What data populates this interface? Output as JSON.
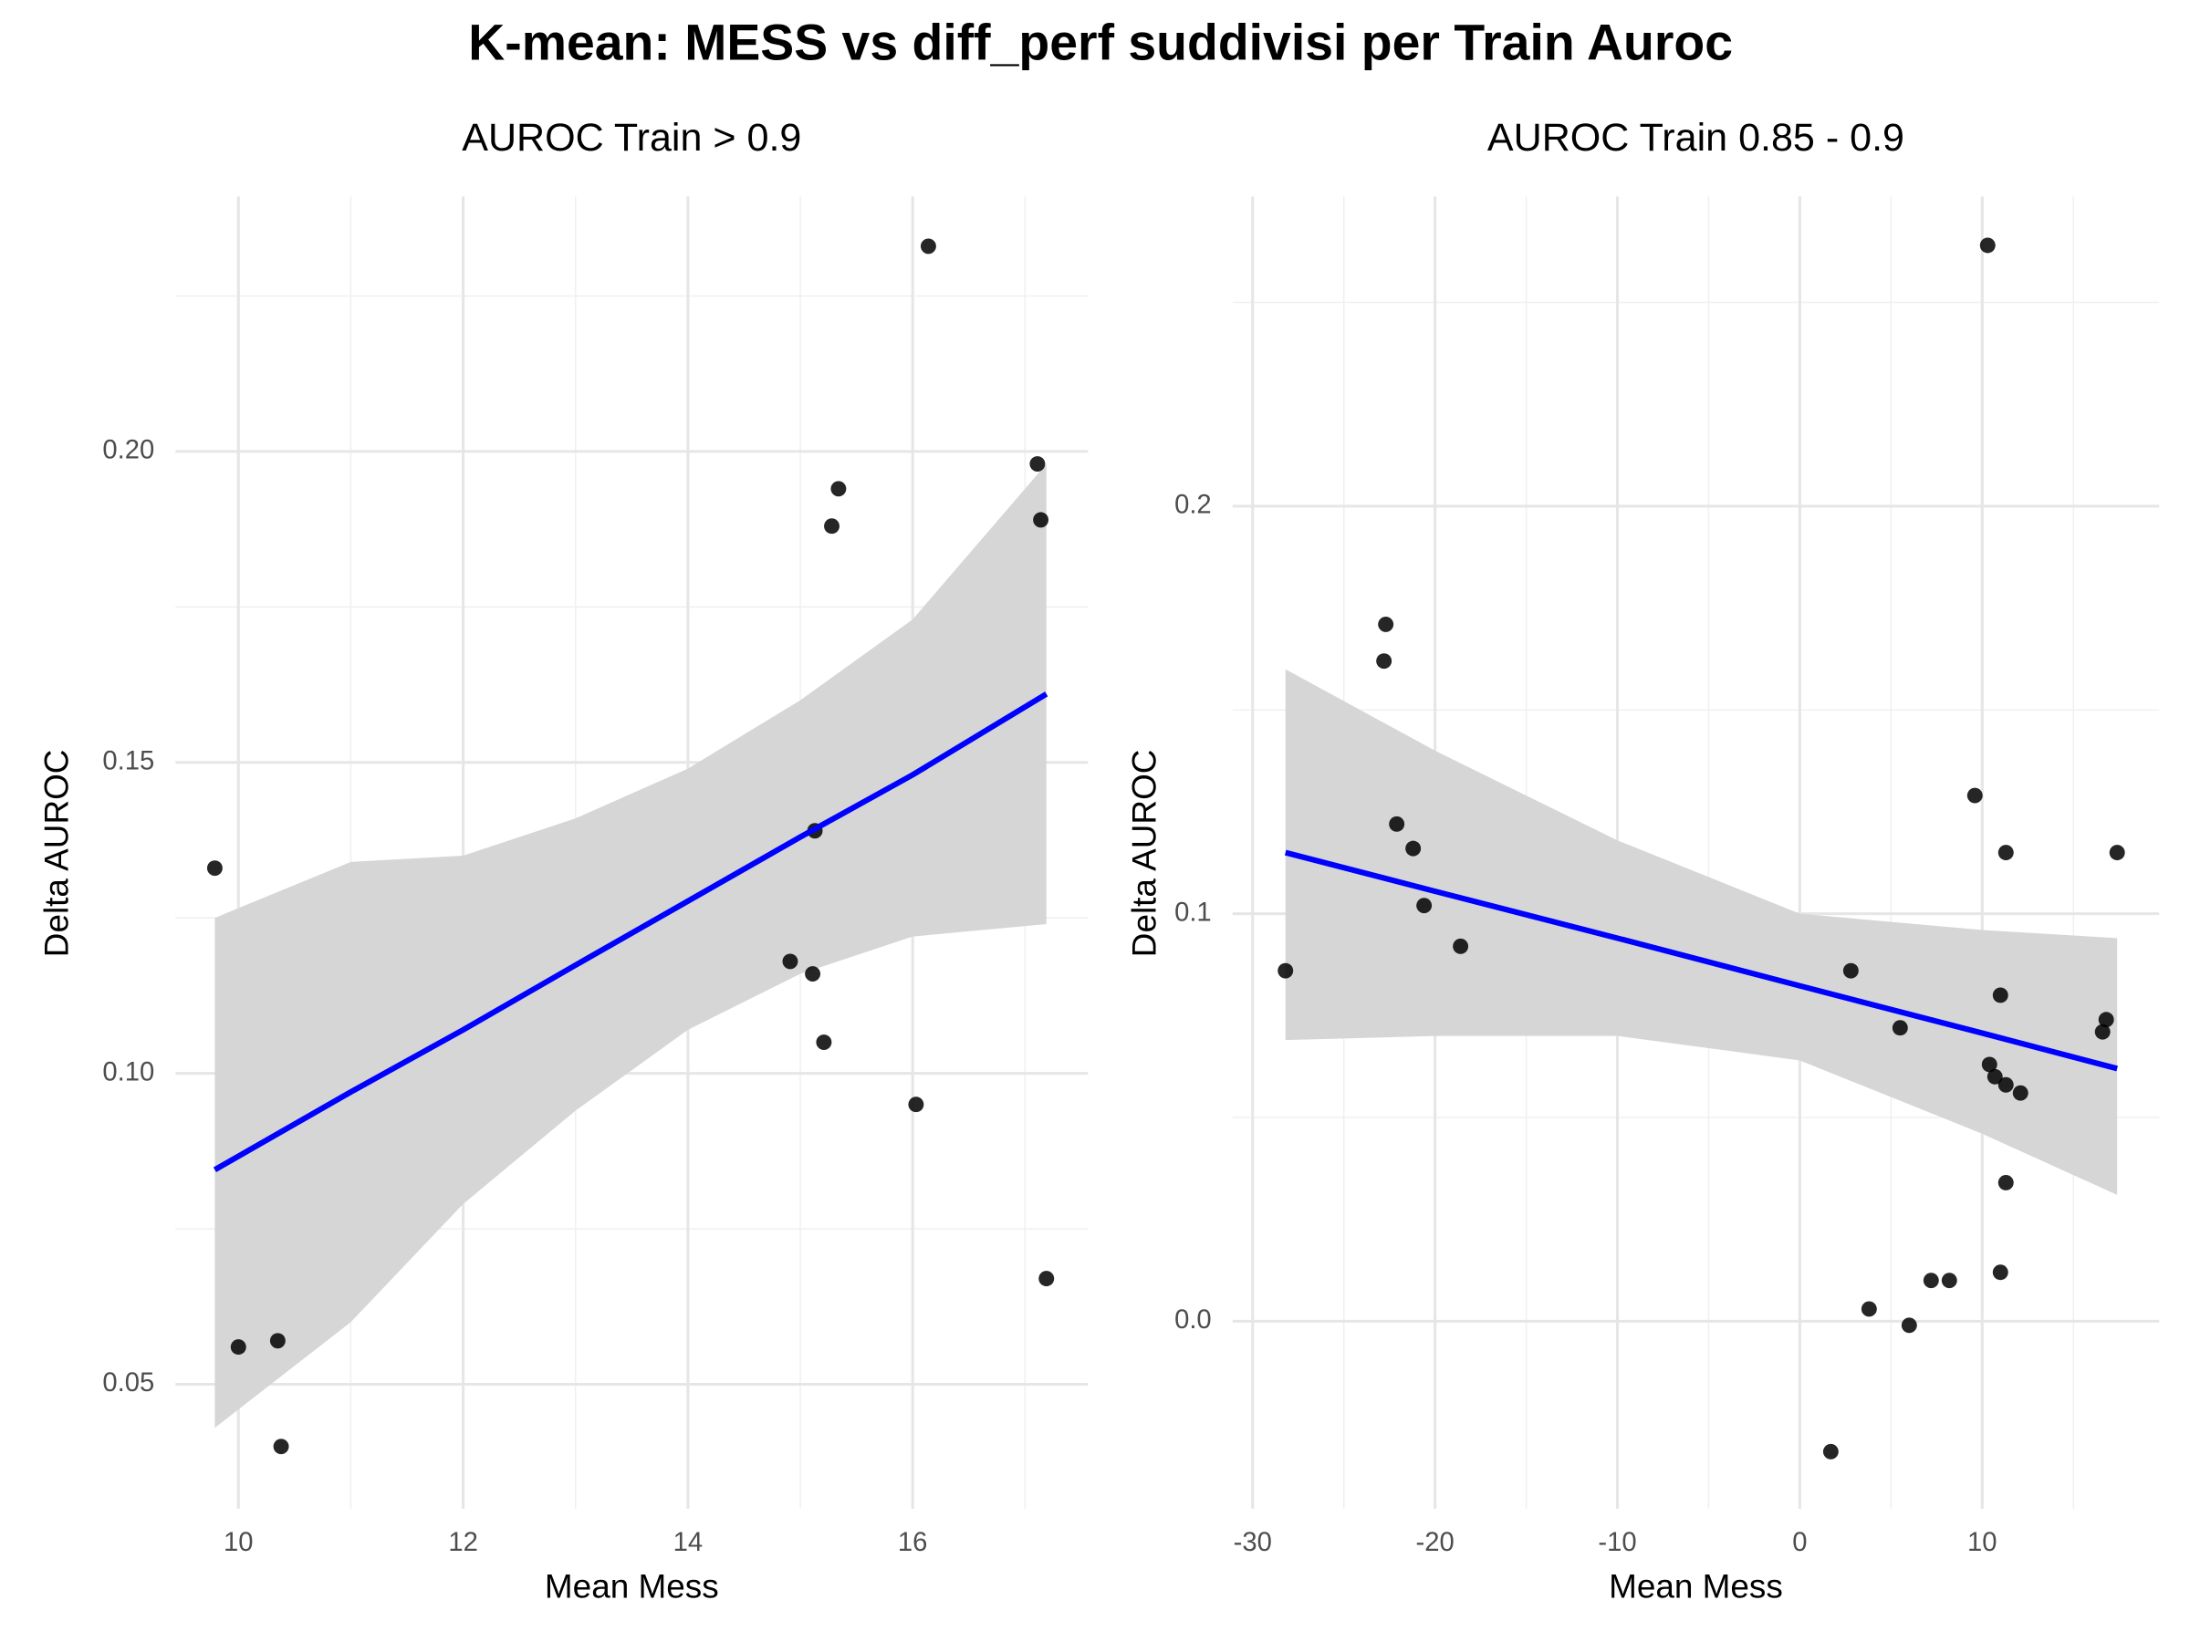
{
  "title": "K-mean: MESS vs diff_perf suddivisi per Train Auroc",
  "chart_data": [
    {
      "type": "scatter",
      "title": "AUROC Train > 0.9",
      "x_label": "Mean Mess",
      "y_label": "Delta AUROC",
      "x": [
        9.79,
        16.14,
        17.11,
        17.14,
        15.34,
        15.28,
        15.13,
        14.91,
        15.11,
        15.21,
        16.03,
        17.19,
        10.0,
        10.35,
        10.38
      ],
      "values": [
        0.133,
        0.233,
        0.198,
        0.189,
        0.194,
        0.188,
        0.139,
        0.118,
        0.116,
        0.105,
        0.095,
        0.067,
        0.056,
        0.057,
        0.04
      ],
      "color": "#000000",
      "fit": {
        "color": "#0000ff",
        "band_color": "#d6d6d6",
        "x": [
          9.79,
          11,
          12,
          13,
          14,
          15,
          16,
          17.19
        ],
        "values": [
          0.0845,
          0.097,
          0.107,
          0.1174,
          0.1277,
          0.138,
          0.148,
          0.161
        ],
        "upper": [
          0.125,
          0.134,
          0.135,
          0.141,
          0.149,
          0.16,
          0.173,
          0.198
        ],
        "lower": [
          0.043,
          0.06,
          0.079,
          0.094,
          0.107,
          0.116,
          0.122,
          0.124
        ]
      },
      "xlim": [
        9.44,
        17.56
      ],
      "ylim": [
        0.03,
        0.241
      ],
      "xticks": [
        10,
        12,
        14,
        16
      ],
      "yticks": [
        0.05,
        {
          "value": 0.1,
          "label": "0.10"
        },
        0.15,
        {
          "value": 0.2,
          "label": "0.20"
        }
      ],
      "grid": true
    },
    {
      "type": "scatter",
      "title": "AUROC Train 0.85 - 0.9",
      "x_label": "Mean Mess",
      "y_label": "Delta AUROC",
      "x": [
        -28.2,
        -22.7,
        -22.8,
        -22.1,
        -21.2,
        -20.6,
        -18.6,
        10.3,
        9.6,
        11.3,
        17.4,
        2.8,
        5.5,
        11.0,
        16.8,
        16.6,
        10.4,
        10.7,
        11.3,
        12.1,
        11.3,
        11.0,
        7.2,
        8.2,
        3.8,
        6.0,
        1.7
      ],
      "values": [
        0.086,
        0.171,
        0.162,
        0.122,
        0.116,
        0.102,
        0.092,
        0.264,
        0.129,
        0.115,
        0.115,
        0.086,
        0.072,
        0.08,
        0.074,
        0.071,
        0.063,
        0.06,
        0.058,
        0.056,
        0.034,
        0.012,
        0.01,
        0.01,
        0.003,
        -0.001,
        -0.032
      ],
      "color": "#000000",
      "fit": {
        "color": "#0000ff",
        "band_color": "#d6d6d6",
        "x": [
          -28.2,
          -20,
          -10,
          0,
          10,
          17.4
        ],
        "values": [
          0.115,
          0.1055,
          0.094,
          0.0823,
          0.0707,
          0.062
        ],
        "upper": [
          0.16,
          0.14,
          0.118,
          0.1,
          0.096,
          0.094
        ],
        "lower": [
          0.069,
          0.07,
          0.07,
          0.064,
          0.046,
          0.031
        ]
      },
      "xlim": [
        -31.1,
        19.7
      ],
      "ylim": [
        -0.046,
        0.276
      ],
      "xticks": [
        -30,
        -20,
        -10,
        0,
        10
      ],
      "yticks": [
        {
          "value": 0,
          "label": "0.0"
        },
        0.1,
        0.2
      ],
      "grid": true
    }
  ]
}
